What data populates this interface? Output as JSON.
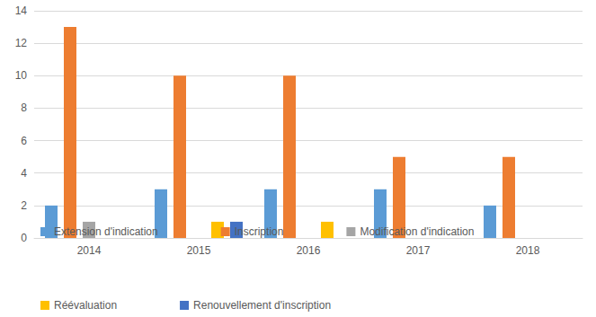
{
  "chart_data": {
    "type": "bar",
    "categories": [
      "2014",
      "2015",
      "2016",
      "2017",
      "2018"
    ],
    "series": [
      {
        "name": "Extension d'indication",
        "color": "#5b9bd5",
        "values": [
          2,
          3,
          3,
          3,
          2
        ]
      },
      {
        "name": "Inscription",
        "color": "#ed7d31",
        "values": [
          13,
          10,
          10,
          5,
          5
        ]
      },
      {
        "name": "Modification d'indication",
        "color": "#a5a5a5",
        "values": [
          1,
          0,
          0,
          0,
          0
        ]
      },
      {
        "name": "Réévaluation",
        "color": "#ffc000",
        "values": [
          0,
          1,
          1,
          0,
          0
        ]
      },
      {
        "name": "Renouvellement d'inscription",
        "color": "#4472c4",
        "values": [
          0,
          1,
          0,
          0,
          0
        ]
      }
    ],
    "ylim": [
      0,
      14
    ],
    "yticks": [
      0,
      2,
      4,
      6,
      8,
      10,
      12,
      14
    ],
    "grid": true,
    "legend": "bottom"
  }
}
